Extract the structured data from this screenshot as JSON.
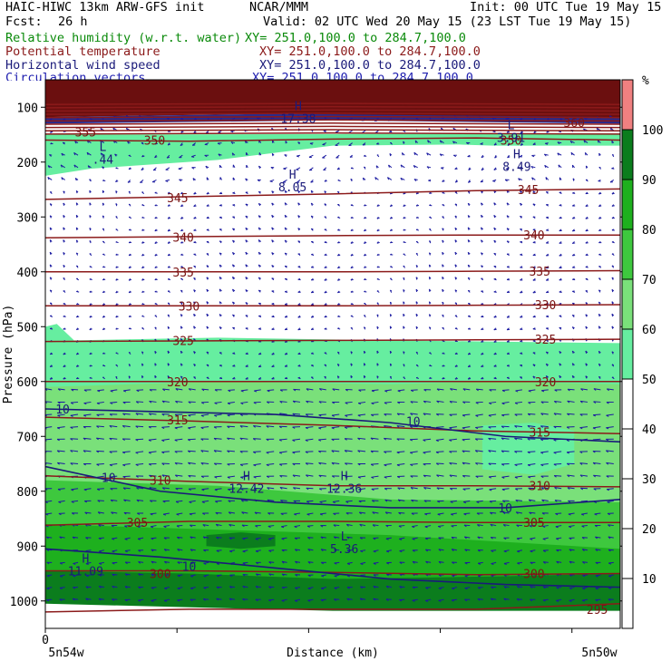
{
  "header": {
    "title": "HAIC-HIWC 13km ARW-GFS init",
    "center": "NCAR/MMM",
    "init": "Init: 00 UTC Tue 19 May 15",
    "fcst_label": "Fcst:",
    "fcst_value": "26 h",
    "valid": "Valid: 02 UTC Wed 20 May 15 (23 LST Tue 19 May 15)",
    "fields": [
      {
        "name": "Relative humidity (w.r.t. water)",
        "xy": "XY= 251.0,100.0 to 284.7,100.0",
        "color": "#0a8a0a"
      },
      {
        "name": "Potential temperature",
        "xy": "XY= 251.0,100.0 to 284.7,100.0",
        "color": "#8b1a1a"
      },
      {
        "name": "Horizontal wind speed",
        "xy": "XY= 251.0,100.0 to 284.7,100.0",
        "color": "#1a1a7a"
      },
      {
        "name": "Circulation vectors",
        "xy": "XY= 251.0,100.0 to 284.7,100.0",
        "color": "#2020b0"
      }
    ]
  },
  "chart_data": {
    "type": "heatmap",
    "xlabel": "Distance (km)",
    "ylabel": "Pressure (hPa)",
    "x_tick_labels": [
      "0"
    ],
    "x_endpoint_labels": [
      "5n54w",
      "5n50w"
    ],
    "y_ticks": [
      100,
      200,
      300,
      400,
      500,
      600,
      700,
      800,
      900,
      1000
    ],
    "y_range": [
      1050,
      50
    ],
    "colorbar": {
      "unit": "%",
      "ticks": [
        10,
        20,
        30,
        40,
        50,
        60,
        70,
        80,
        90,
        100
      ],
      "bins": [
        {
          "from": 0,
          "to": 50,
          "color": "#ffffff"
        },
        {
          "from": 50,
          "to": 60,
          "color": "#66eea0"
        },
        {
          "from": 60,
          "to": 70,
          "color": "#7ae07a"
        },
        {
          "from": 70,
          "to": 80,
          "color": "#3ec83e"
        },
        {
          "from": 80,
          "to": 90,
          "color": "#1eb01e"
        },
        {
          "from": 90,
          "to": 100,
          "color": "#0b7d1d"
        },
        {
          "from": 100,
          "to": 110,
          "color": "#f08080"
        }
      ]
    },
    "theta_contours": [
      {
        "label": "350",
        "p": [
          160,
          162,
          158,
          156,
          160
        ]
      },
      {
        "label": "345",
        "p": [
          268,
          263,
          258,
          252,
          249
        ]
      },
      {
        "label": "340",
        "p": [
          338,
          336,
          334,
          333,
          333
        ]
      },
      {
        "label": "335",
        "p": [
          400,
          400,
          400,
          399,
          398
        ]
      },
      {
        "label": "330",
        "p": [
          462,
          462,
          462,
          461,
          460
        ]
      },
      {
        "label": "325",
        "p": [
          527,
          526,
          525,
          524,
          523
        ]
      },
      {
        "label": "320",
        "p": [
          600,
          600,
          600,
          600,
          600
        ]
      },
      {
        "label": "315",
        "p": [
          665,
          672,
          680,
          690,
          695
        ]
      },
      {
        "label": "310",
        "p": [
          772,
          782,
          790,
          790,
          792
        ]
      },
      {
        "label": "305",
        "p": [
          862,
          855,
          855,
          857,
          857
        ]
      },
      {
        "label": "300",
        "p": [
          945,
          945,
          948,
          952,
          950
        ]
      },
      {
        "label": "295",
        "p": [
          1020,
          1015,
          1015,
          1015,
          1005
        ]
      }
    ],
    "theta_labels": [
      {
        "text": "355",
        "x": 0.07,
        "p": 145
      },
      {
        "text": "350",
        "x": 0.19,
        "p": 160
      },
      {
        "text": "350",
        "x": 0.81,
        "p": 160
      },
      {
        "text": "360",
        "x": 0.92,
        "p": 128
      },
      {
        "text": "345",
        "x": 0.23,
        "p": 265
      },
      {
        "text": "345",
        "x": 0.84,
        "p": 250
      },
      {
        "text": "340",
        "x": 0.24,
        "p": 337
      },
      {
        "text": "340",
        "x": 0.85,
        "p": 333
      },
      {
        "text": "335",
        "x": 0.24,
        "p": 400
      },
      {
        "text": "335",
        "x": 0.86,
        "p": 399
      },
      {
        "text": "330",
        "x": 0.25,
        "p": 462
      },
      {
        "text": "330",
        "x": 0.87,
        "p": 460
      },
      {
        "text": "325",
        "x": 0.24,
        "p": 525
      },
      {
        "text": "325",
        "x": 0.87,
        "p": 523
      },
      {
        "text": "320",
        "x": 0.23,
        "p": 600
      },
      {
        "text": "320",
        "x": 0.87,
        "p": 600
      },
      {
        "text": "315",
        "x": 0.23,
        "p": 670
      },
      {
        "text": "315",
        "x": 0.86,
        "p": 692
      },
      {
        "text": "310",
        "x": 0.2,
        "p": 780
      },
      {
        "text": "310",
        "x": 0.86,
        "p": 790
      },
      {
        "text": "305",
        "x": 0.16,
        "p": 857
      },
      {
        "text": "305",
        "x": 0.85,
        "p": 857
      },
      {
        "text": "300",
        "x": 0.2,
        "p": 950
      },
      {
        "text": "300",
        "x": 0.85,
        "p": 950
      },
      {
        "text": "295",
        "x": 0.96,
        "p": 1015
      }
    ],
    "wind_contours": [
      {
        "label": "10",
        "p": [
          650,
          655,
          660,
          675,
          700,
          710
        ]
      },
      {
        "label": "10",
        "p": [
          755,
          800,
          820,
          830,
          830,
          815
        ]
      },
      {
        "label": "10",
        "p": [
          905,
          920,
          940,
          960,
          970,
          975
        ]
      }
    ],
    "wind_labels": [
      {
        "text": "10",
        "x": 0.03,
        "p": 650
      },
      {
        "text": "10",
        "x": 0.64,
        "p": 672
      },
      {
        "text": "10",
        "x": 0.11,
        "p": 775
      },
      {
        "text": "10",
        "x": 0.8,
        "p": 830
      },
      {
        "text": "10",
        "x": 0.25,
        "p": 937
      }
    ],
    "extrema": [
      {
        "type": "L",
        "value": ".44",
        "x": 0.1,
        "p": 185
      },
      {
        "type": "H",
        "value": "8.05",
        "x": 0.43,
        "p": 235
      },
      {
        "type": "H",
        "value": "8.49",
        "x": 0.82,
        "p": 198
      },
      {
        "type": "H",
        "value": "12.42",
        "x": 0.35,
        "p": 785
      },
      {
        "type": "H",
        "value": "12.36",
        "x": 0.52,
        "p": 785
      },
      {
        "type": "L",
        "value": "5.36",
        "x": 0.52,
        "p": 895
      },
      {
        "type": "H",
        "value": "11.09",
        "x": 0.07,
        "p": 935
      },
      {
        "type": "L",
        "value": "3.91",
        "x": 0.81,
        "p": 145
      },
      {
        "type": "H",
        "value": "17.38",
        "x": 0.44,
        "p": 110
      }
    ]
  }
}
